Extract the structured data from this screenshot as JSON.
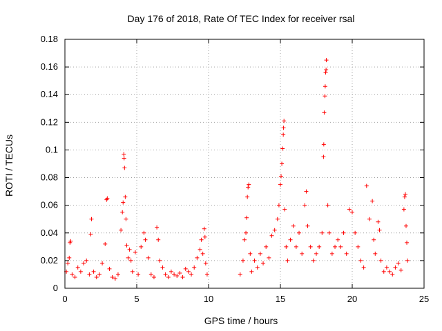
{
  "chart_data": {
    "type": "scatter",
    "title": "Day 176 of 2018, Rate Of TEC Index for receiver rsal",
    "xlabel": "GPS time / hours",
    "ylabel": "ROTI / TECUs",
    "xlim": [
      0,
      25
    ],
    "ylim": [
      0,
      0.18
    ],
    "xticks": [
      "0",
      "5",
      "10",
      "15",
      "20",
      "25"
    ],
    "yticks": [
      "0",
      "0.02",
      "0.04",
      "0.06",
      "0.08",
      "0.1",
      "0.12",
      "0.14",
      "0.16",
      "0.18"
    ],
    "grid": true,
    "marker": "+",
    "color": "#ff0000",
    "series": [
      {
        "name": "ROTI",
        "points": [
          [
            0.1,
            0.012
          ],
          [
            0.2,
            0.018
          ],
          [
            0.3,
            0.022
          ],
          [
            0.35,
            0.033
          ],
          [
            0.4,
            0.034
          ],
          [
            0.5,
            0.01
          ],
          [
            0.7,
            0.008
          ],
          [
            0.9,
            0.015
          ],
          [
            1.1,
            0.012
          ],
          [
            1.3,
            0.018
          ],
          [
            1.5,
            0.02
          ],
          [
            1.7,
            0.01
          ],
          [
            1.8,
            0.039
          ],
          [
            1.85,
            0.05
          ],
          [
            2.0,
            0.012
          ],
          [
            2.2,
            0.008
          ],
          [
            2.4,
            0.01
          ],
          [
            2.6,
            0.018
          ],
          [
            2.8,
            0.032
          ],
          [
            2.9,
            0.064
          ],
          [
            2.95,
            0.065
          ],
          [
            3.1,
            0.014
          ],
          [
            3.3,
            0.008
          ],
          [
            3.5,
            0.007
          ],
          [
            3.7,
            0.01
          ],
          [
            3.9,
            0.042
          ],
          [
            4.0,
            0.055
          ],
          [
            4.05,
            0.062
          ],
          [
            4.1,
            0.097
          ],
          [
            4.12,
            0.094
          ],
          [
            4.15,
            0.087
          ],
          [
            4.2,
            0.066
          ],
          [
            4.25,
            0.05
          ],
          [
            4.3,
            0.031
          ],
          [
            4.4,
            0.022
          ],
          [
            4.5,
            0.028
          ],
          [
            4.6,
            0.02
          ],
          [
            4.7,
            0.012
          ],
          [
            4.9,
            0.026
          ],
          [
            5.1,
            0.01
          ],
          [
            5.3,
            0.03
          ],
          [
            5.5,
            0.04
          ],
          [
            5.6,
            0.035
          ],
          [
            5.8,
            0.022
          ],
          [
            6.0,
            0.01
          ],
          [
            6.2,
            0.008
          ],
          [
            6.4,
            0.044
          ],
          [
            6.5,
            0.035
          ],
          [
            6.6,
            0.02
          ],
          [
            6.8,
            0.015
          ],
          [
            7.0,
            0.01
          ],
          [
            7.2,
            0.008
          ],
          [
            7.4,
            0.012
          ],
          [
            7.6,
            0.01
          ],
          [
            7.8,
            0.009
          ],
          [
            8.0,
            0.011
          ],
          [
            8.2,
            0.008
          ],
          [
            8.4,
            0.014
          ],
          [
            8.6,
            0.012
          ],
          [
            8.8,
            0.01
          ],
          [
            9.0,
            0.015
          ],
          [
            9.2,
            0.022
          ],
          [
            9.4,
            0.028
          ],
          [
            9.5,
            0.035
          ],
          [
            9.6,
            0.025
          ],
          [
            9.7,
            0.043
          ],
          [
            9.75,
            0.037
          ],
          [
            9.8,
            0.018
          ],
          [
            9.9,
            0.01
          ],
          [
            12.2,
            0.01
          ],
          [
            12.4,
            0.02
          ],
          [
            12.5,
            0.035
          ],
          [
            12.6,
            0.04
          ],
          [
            12.65,
            0.051
          ],
          [
            12.7,
            0.066
          ],
          [
            12.75,
            0.073
          ],
          [
            12.8,
            0.075
          ],
          [
            12.9,
            0.025
          ],
          [
            13.0,
            0.012
          ],
          [
            13.2,
            0.02
          ],
          [
            13.4,
            0.015
          ],
          [
            13.6,
            0.025
          ],
          [
            13.8,
            0.018
          ],
          [
            14.0,
            0.03
          ],
          [
            14.2,
            0.022
          ],
          [
            14.4,
            0.038
          ],
          [
            14.6,
            0.042
          ],
          [
            14.8,
            0.05
          ],
          [
            14.9,
            0.06
          ],
          [
            15.0,
            0.075
          ],
          [
            15.05,
            0.081
          ],
          [
            15.1,
            0.09
          ],
          [
            15.15,
            0.101
          ],
          [
            15.2,
            0.111
          ],
          [
            15.22,
            0.116
          ],
          [
            15.25,
            0.121
          ],
          [
            15.3,
            0.057
          ],
          [
            15.4,
            0.03
          ],
          [
            15.5,
            0.02
          ],
          [
            15.7,
            0.035
          ],
          [
            15.9,
            0.045
          ],
          [
            16.1,
            0.03
          ],
          [
            16.3,
            0.04
          ],
          [
            16.5,
            0.025
          ],
          [
            16.7,
            0.06
          ],
          [
            16.8,
            0.07
          ],
          [
            16.9,
            0.045
          ],
          [
            17.1,
            0.03
          ],
          [
            17.3,
            0.02
          ],
          [
            17.5,
            0.025
          ],
          [
            17.7,
            0.03
          ],
          [
            17.9,
            0.04
          ],
          [
            18.0,
            0.095
          ],
          [
            18.02,
            0.104
          ],
          [
            18.05,
            0.127
          ],
          [
            18.1,
            0.139
          ],
          [
            18.12,
            0.146
          ],
          [
            18.15,
            0.156
          ],
          [
            18.18,
            0.158
          ],
          [
            18.2,
            0.165
          ],
          [
            18.3,
            0.06
          ],
          [
            18.4,
            0.04
          ],
          [
            18.6,
            0.025
          ],
          [
            18.8,
            0.03
          ],
          [
            19.0,
            0.035
          ],
          [
            19.2,
            0.03
          ],
          [
            19.4,
            0.04
          ],
          [
            19.6,
            0.025
          ],
          [
            19.8,
            0.057
          ],
          [
            20.0,
            0.055
          ],
          [
            20.2,
            0.04
          ],
          [
            20.4,
            0.03
          ],
          [
            20.6,
            0.02
          ],
          [
            20.8,
            0.015
          ],
          [
            21.0,
            0.074
          ],
          [
            21.2,
            0.05
          ],
          [
            21.4,
            0.063
          ],
          [
            21.5,
            0.035
          ],
          [
            21.6,
            0.025
          ],
          [
            21.8,
            0.048
          ],
          [
            21.9,
            0.042
          ],
          [
            22.0,
            0.02
          ],
          [
            22.2,
            0.012
          ],
          [
            22.4,
            0.015
          ],
          [
            22.6,
            0.012
          ],
          [
            22.8,
            0.01
          ],
          [
            23.0,
            0.015
          ],
          [
            23.2,
            0.018
          ],
          [
            23.4,
            0.013
          ],
          [
            23.6,
            0.057
          ],
          [
            23.65,
            0.066
          ],
          [
            23.7,
            0.068
          ],
          [
            23.75,
            0.045
          ],
          [
            23.8,
            0.033
          ],
          [
            23.85,
            0.02
          ]
        ]
      }
    ]
  }
}
